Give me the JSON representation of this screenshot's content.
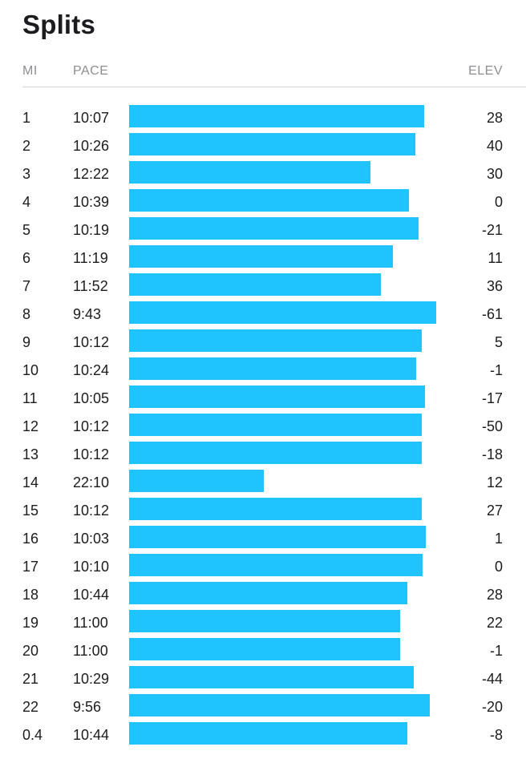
{
  "title": "Splits",
  "columns": {
    "mi": "MI",
    "pace": "PACE",
    "elev": "ELEV"
  },
  "colors": {
    "bar": "#1fc4ff",
    "text": "#1c1c1e",
    "header": "#8e8e93"
  },
  "chart_data": {
    "type": "bar",
    "orientation": "horizontal",
    "bar_metric": "speed (inverse of pace)",
    "categories": [
      "1",
      "2",
      "3",
      "4",
      "5",
      "6",
      "7",
      "8",
      "9",
      "10",
      "11",
      "12",
      "13",
      "14",
      "15",
      "16",
      "17",
      "18",
      "19",
      "20",
      "21",
      "22",
      "0.4"
    ],
    "pace": [
      "10:07",
      "10:26",
      "12:22",
      "10:39",
      "10:19",
      "11:19",
      "11:52",
      "9:43",
      "10:12",
      "10:24",
      "10:05",
      "10:12",
      "10:12",
      "22:10",
      "10:12",
      "10:03",
      "10:10",
      "10:44",
      "11:00",
      "11:00",
      "10:29",
      "9:56",
      "10:44"
    ],
    "elev": [
      "28",
      "40",
      "30",
      "0",
      "-21",
      "11",
      "36",
      "-61",
      "5",
      "-1",
      "-17",
      "-50",
      "-18",
      "12",
      "27",
      "1",
      "0",
      "28",
      "22",
      "-1",
      "-44",
      "-20",
      "-8"
    ]
  }
}
